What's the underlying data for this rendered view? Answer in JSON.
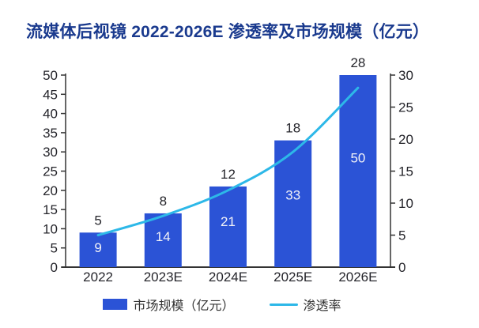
{
  "title": "流媒体后视镜 2022-2026E 渗透率及市场规模（亿元）",
  "colors": {
    "title": "#1a3a8e",
    "bar": "#2b53d6",
    "line": "#2db8e8",
    "axis_text": "#25252b",
    "bar_label": "#f2f2f7",
    "data_label": "#25252b",
    "axis_line": "#333333",
    "legend_text": "#333333"
  },
  "legend": [
    {
      "label": "市场规模（亿元）",
      "type": "bar"
    },
    {
      "label": "渗透率",
      "type": "line"
    }
  ],
  "chart_data": {
    "type": "bar+line",
    "title": "流媒体后视镜 2022-2026E 渗透率及市场规模（亿元）",
    "categories": [
      "2022",
      "2023E",
      "2024E",
      "2025E",
      "2026E"
    ],
    "series": [
      {
        "name": "市场规模（亿元）",
        "type": "bar",
        "axis": "left",
        "values": [
          9,
          14,
          21,
          33,
          50
        ]
      },
      {
        "name": "渗透率",
        "type": "line",
        "axis": "right",
        "values": [
          5,
          8,
          12,
          18,
          28
        ]
      }
    ],
    "left_axis": {
      "min": 0,
      "max": 50,
      "step": 5
    },
    "right_axis": {
      "min": 0,
      "max": 30,
      "step": 5
    },
    "grid": false,
    "legend_position": "bottom"
  }
}
